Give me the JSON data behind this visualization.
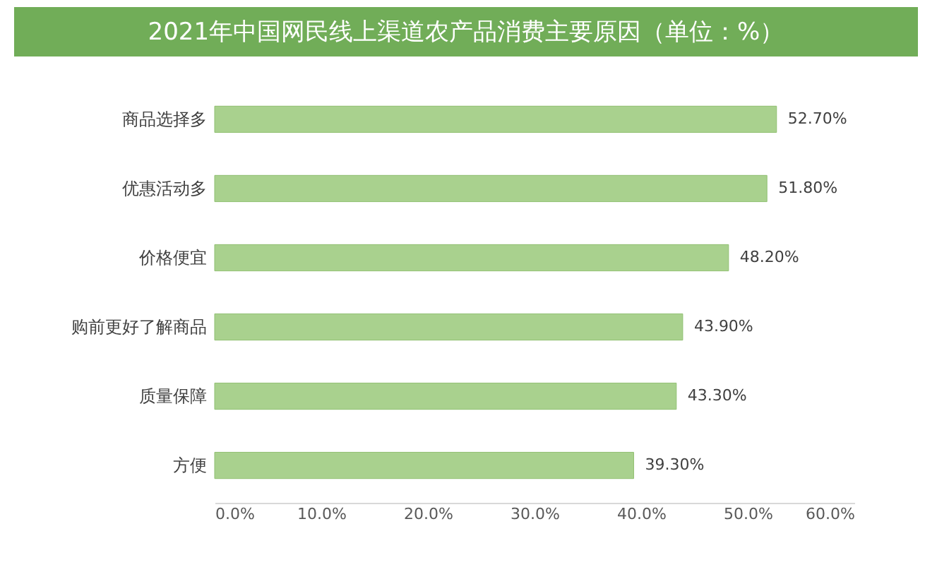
{
  "chart_data": {
    "type": "bar",
    "orientation": "horizontal",
    "title": "2021年中国网民线上渠道农产品消费主要原因（单位：%）",
    "categories": [
      "商品选择多",
      "优惠活动多",
      "价格便宜",
      "购前更好了解商品",
      "质量保障",
      "方便"
    ],
    "values": [
      52.7,
      51.8,
      48.2,
      43.9,
      43.3,
      39.3
    ],
    "value_labels": [
      "52.70%",
      "51.80%",
      "48.20%",
      "43.90%",
      "43.30%",
      "39.30%"
    ],
    "color": "#a9d18e",
    "xlim": [
      0,
      60
    ],
    "xticks": [
      {
        "value": 0,
        "label": "0.0%"
      },
      {
        "value": 10,
        "label": "10.0%"
      },
      {
        "value": 20,
        "label": "20.0%"
      },
      {
        "value": 30,
        "label": "30.0%"
      },
      {
        "value": 40,
        "label": "40.0%"
      },
      {
        "value": 50,
        "label": "50.0%"
      },
      {
        "value": 60,
        "label": "60.0%"
      }
    ],
    "grid": false
  }
}
